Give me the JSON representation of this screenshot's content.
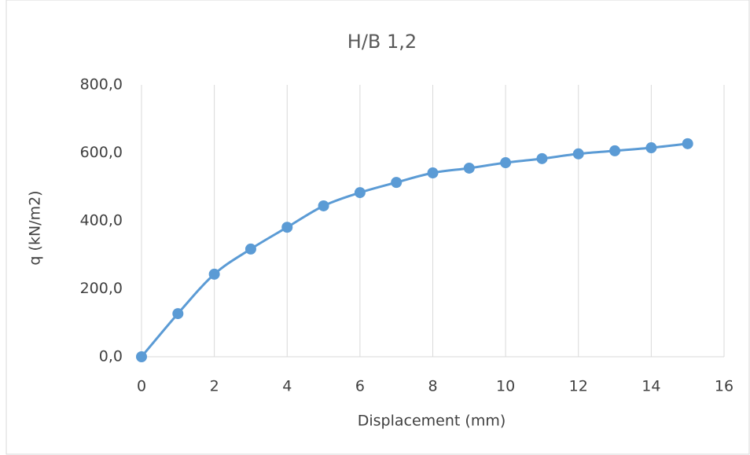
{
  "chart_data": {
    "type": "line",
    "title": "H/B 1,2",
    "x_label": "Displacement (mm)",
    "y_label": "q (kN/m2)",
    "x": [
      0,
      1,
      2,
      3,
      4,
      5,
      6,
      7,
      8,
      9,
      10,
      11,
      12,
      13,
      14,
      15
    ],
    "series": [
      {
        "color": "#5b9bd5",
        "values": [
          0,
          127,
          243,
          317,
          381,
          444,
          483,
          513,
          541,
          555,
          571,
          583,
          597,
          606,
          615,
          627
        ]
      }
    ],
    "xlim": [
      0,
      16
    ],
    "xticks": [
      0,
      2,
      4,
      6,
      8,
      10,
      12,
      14,
      16
    ],
    "ylim": [
      0,
      800
    ],
    "yticks": [
      {
        "value": 0,
        "label": "0,0"
      },
      {
        "value": 200,
        "label": "200,0"
      },
      {
        "value": 400,
        "label": "400,0"
      },
      {
        "value": 600,
        "label": "600,0"
      },
      {
        "value": 800,
        "label": "800,0"
      }
    ],
    "x_grid": true,
    "y_grid": false,
    "smooth": true
  }
}
